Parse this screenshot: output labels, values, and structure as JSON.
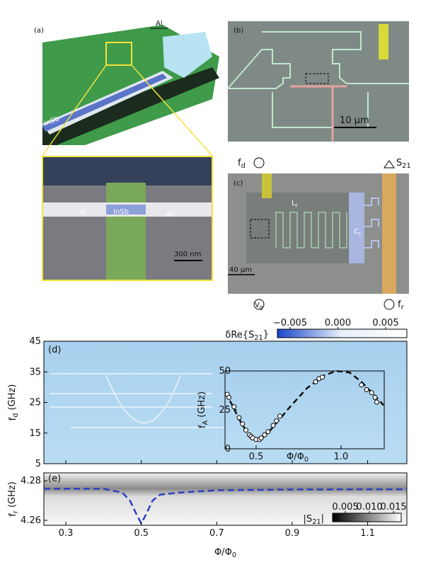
{
  "panels": {
    "a": {
      "label": "(a)",
      "al_label": "Al",
      "wire_label": "InSb",
      "zoom": {
        "left_label": "Al",
        "wire_label": "InSb",
        "right_label": "Al",
        "scale_bar": "300 nm"
      }
    },
    "b": {
      "label": "(b)",
      "scale_bar": "10 μm"
    },
    "c": {
      "label": "(c)",
      "drive": "f_{d}",
      "output": "S_{21}",
      "inductor": "L_{r}",
      "capacitor": "C_{r}",
      "scale_bar": "40 μm",
      "gate": "V_{g}",
      "readout": "f_{r}"
    }
  },
  "chart_data": [
    {
      "type": "heatmap",
      "panel_label": "(d)",
      "ylabel": "f_{d} (GHz)",
      "ylim": [
        5,
        45
      ],
      "yticks": [
        5,
        15,
        25,
        35,
        45
      ],
      "colorbar": {
        "label": "δRe{S_{21}}",
        "lim": [
          -0.00633,
          0.00722
        ],
        "ticks": [
          {
            "value": -0.005,
            "label": "−0.005"
          },
          {
            "value": 0,
            "label": "0.000"
          },
          0.005
        ]
      }
    },
    {
      "type": "scatter",
      "ylabel": "f_{A} (GHz)",
      "xlabel": "Φ/Φ_{0}",
      "xlim": [
        0.317,
        1.254
      ],
      "ylim": [
        0,
        50
      ],
      "xticks": [
        0.5,
        {
          "value": 1,
          "label": "1.0"
        }
      ],
      "yticks": [
        0,
        25,
        50
      ],
      "x": [
        0.33,
        0.34,
        0.37,
        0.4,
        0.42,
        0.44,
        0.46,
        0.47,
        0.48,
        0.5,
        0.52,
        0.53,
        0.55,
        0.57,
        0.6,
        0.62,
        0.64,
        0.85,
        0.87,
        0.89,
        1.12,
        1.15,
        1.18,
        1.2,
        1.21
      ],
      "values": [
        35,
        33,
        27,
        20,
        16,
        12,
        9,
        8,
        7,
        6,
        6,
        7,
        9,
        11,
        15,
        18,
        21,
        43,
        45,
        46,
        41,
        38,
        36,
        33,
        30
      ],
      "fit": {
        "x": [
          0.32,
          0.36,
          0.4,
          0.45,
          0.5,
          0.55,
          0.6,
          0.7,
          0.8,
          0.9,
          0.97,
          1.05,
          1.12,
          1.2,
          1.25
        ],
        "values": [
          36,
          28,
          19,
          10,
          5.5,
          8,
          14,
          27,
          39,
          47,
          50,
          49,
          43,
          34,
          28
        ]
      }
    },
    {
      "type": "line",
      "panel_label": "(e)",
      "ylabel": "f_{r} (GHz)",
      "xlabel": "Φ/Φ_{0}",
      "xlim": [
        0.2418,
        1.204
      ],
      "ylim": [
        4.2575,
        4.284
      ],
      "xticks": [
        0.3,
        0.5,
        0.7,
        0.9,
        1.1
      ],
      "yticks": [
        4.26,
        4.28
      ],
      "x": [
        0.2418,
        0.4,
        0.45,
        0.47,
        0.49,
        0.5,
        0.51,
        0.53,
        0.55,
        0.6,
        0.7,
        0.9,
        1.204
      ],
      "values": [
        4.276,
        4.276,
        4.274,
        4.27,
        4.262,
        4.2585,
        4.262,
        4.27,
        4.273,
        4.274,
        4.2752,
        4.2756,
        4.2757
      ],
      "color": "#2a3fbf",
      "colorbar": {
        "label": "|S_{21}|",
        "lim": [
          0.00235,
          0.0166
        ],
        "ticks": [
          0.005,
          {
            "value": 0.01,
            "label": "0.010"
          },
          0.015
        ]
      }
    }
  ]
}
